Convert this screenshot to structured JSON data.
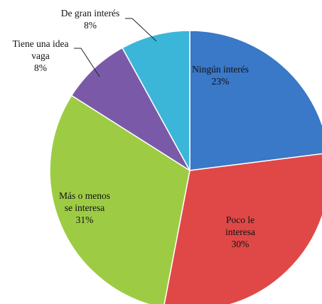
{
  "chart_data": {
    "type": "pie",
    "title": "",
    "slices": [
      {
        "label_lines": [
          "Ningún interés"
        ],
        "value": 23,
        "value_label": "23%",
        "color": "#3a78c8"
      },
      {
        "label_lines": [
          "Poco le",
          "interesa"
        ],
        "value": 30,
        "value_label": "30%",
        "color": "#e04848"
      },
      {
        "label_lines": [
          "Más o menos",
          "se interesa"
        ],
        "value": 31,
        "value_label": "31%",
        "color": "#9dcc44"
      },
      {
        "label_lines": [
          "Tiene una idea",
          "vaga"
        ],
        "value": 8,
        "value_label": "8%",
        "color": "#7a5aa8"
      },
      {
        "label_lines": [
          "De gran interés"
        ],
        "value": 8,
        "value_label": "8%",
        "color": "#3cb6d8"
      }
    ],
    "legend": "none"
  }
}
